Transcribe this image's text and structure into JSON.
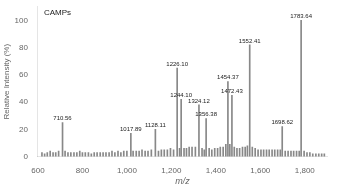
{
  "chart_data": {
    "type": "bar",
    "xlabel": "m/z",
    "ylabel": "Relative Intensity (%)",
    "x": [
      618,
      630,
      642,
      655,
      668,
      680,
      693,
      710.56,
      722,
      735,
      748,
      762,
      775,
      788,
      800,
      813,
      827,
      840,
      853,
      866,
      880,
      893,
      906,
      920,
      933,
      946,
      960,
      973,
      986,
      1000,
      1017.89,
      1028,
      1042,
      1055,
      1068,
      1082,
      1095,
      1110,
      1128.11,
      1142,
      1155,
      1168,
      1182,
      1196,
      1210,
      1226.1,
      1237,
      1244.1,
      1257,
      1268,
      1280,
      1293,
      1308,
      1324.12,
      1338,
      1348,
      1356.38,
      1370,
      1382,
      1395,
      1408,
      1420,
      1433,
      1445,
      1454.37,
      1463,
      1472.43,
      1483,
      1495,
      1507,
      1520,
      1532,
      1542,
      1552.41,
      1564,
      1577,
      1590,
      1603,
      1615,
      1628,
      1640,
      1653,
      1665,
      1678,
      1690,
      1698.62,
      1712,
      1725,
      1738,
      1750,
      1763,
      1775,
      1783.64,
      1797,
      1810,
      1823,
      1836,
      1850,
      1863,
      1876,
      1888
    ],
    "values": [
      3,
      2,
      3,
      4,
      3,
      3,
      4,
      25,
      4,
      3,
      3,
      3,
      3,
      4,
      3,
      3,
      3,
      2,
      3,
      3,
      3,
      3,
      3,
      3,
      4,
      3,
      4,
      3,
      4,
      4,
      17,
      4,
      4,
      4,
      5,
      4,
      4,
      5,
      20,
      4,
      5,
      5,
      5,
      6,
      5,
      65,
      6,
      42,
      6,
      6,
      7,
      7,
      7,
      38,
      6,
      5,
      28,
      6,
      5,
      6,
      6,
      7,
      7,
      9,
      55,
      9,
      45,
      7,
      6,
      6,
      7,
      7,
      8,
      82,
      7,
      6,
      5,
      5,
      5,
      5,
      5,
      5,
      5,
      5,
      5,
      22,
      4,
      4,
      4,
      4,
      4,
      4,
      100,
      4,
      3,
      3,
      2,
      2,
      2,
      2,
      2
    ],
    "color": "#888888",
    "xlim": [
      600,
      1900
    ],
    "ylim": [
      0,
      110
    ],
    "xticks": [
      600,
      800,
      1000,
      1200,
      1400,
      1600,
      1800
    ],
    "yticks": [
      0,
      20,
      40,
      60,
      80,
      100
    ],
    "grid": false,
    "annotations": [
      {
        "x": 710.56,
        "y": 25,
        "text": "710.56"
      },
      {
        "x": 1017.89,
        "y": 17,
        "text": "1017.89"
      },
      {
        "x": 1128.11,
        "y": 20,
        "text": "1128.11"
      },
      {
        "x": 1226.1,
        "y": 65,
        "text": "1226.10"
      },
      {
        "x": 1244.1,
        "y": 42,
        "text": "1244.10"
      },
      {
        "x": 1324.12,
        "y": 38,
        "text": "1324.12"
      },
      {
        "x": 1356.38,
        "y": 28,
        "text": "1356.38"
      },
      {
        "x": 1454.37,
        "y": 55,
        "text": "1454.37"
      },
      {
        "x": 1472.43,
        "y": 45,
        "text": "1472.43"
      },
      {
        "x": 1552.41,
        "y": 82,
        "text": "1552.41"
      },
      {
        "x": 1698.62,
        "y": 22,
        "text": "1698.62"
      },
      {
        "x": 1783.64,
        "y": 100,
        "text": "1783.64"
      },
      {
        "text": "CAMPs"
      }
    ]
  }
}
